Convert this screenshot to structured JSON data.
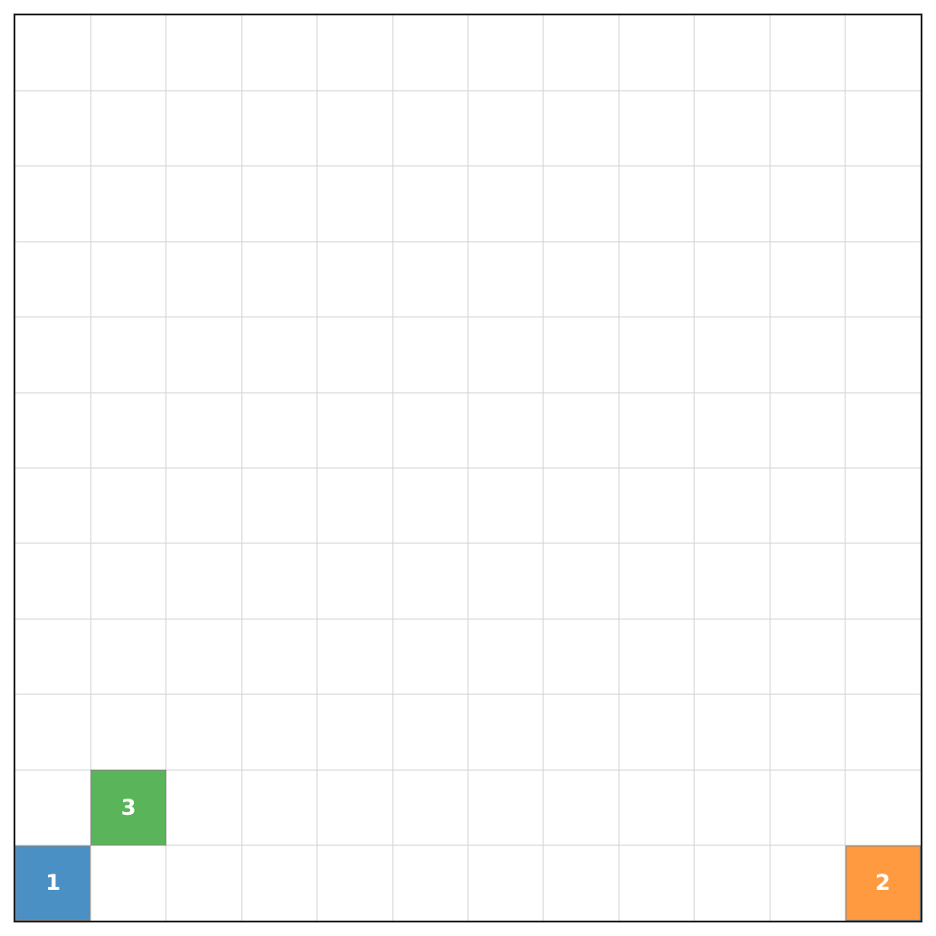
{
  "board": {
    "columns": 12,
    "rows": 12,
    "grid_color": "#d4d4d4",
    "border_color": "#222222",
    "background": "#ffffff"
  },
  "pieces": [
    {
      "label": "1",
      "color": "#4a90c4",
      "col": 0,
      "row": 11
    },
    {
      "label": "2",
      "color": "#ff9a40",
      "col": 11,
      "row": 11
    },
    {
      "label": "3",
      "color": "#5ab45a",
      "col": 1,
      "row": 10
    }
  ]
}
